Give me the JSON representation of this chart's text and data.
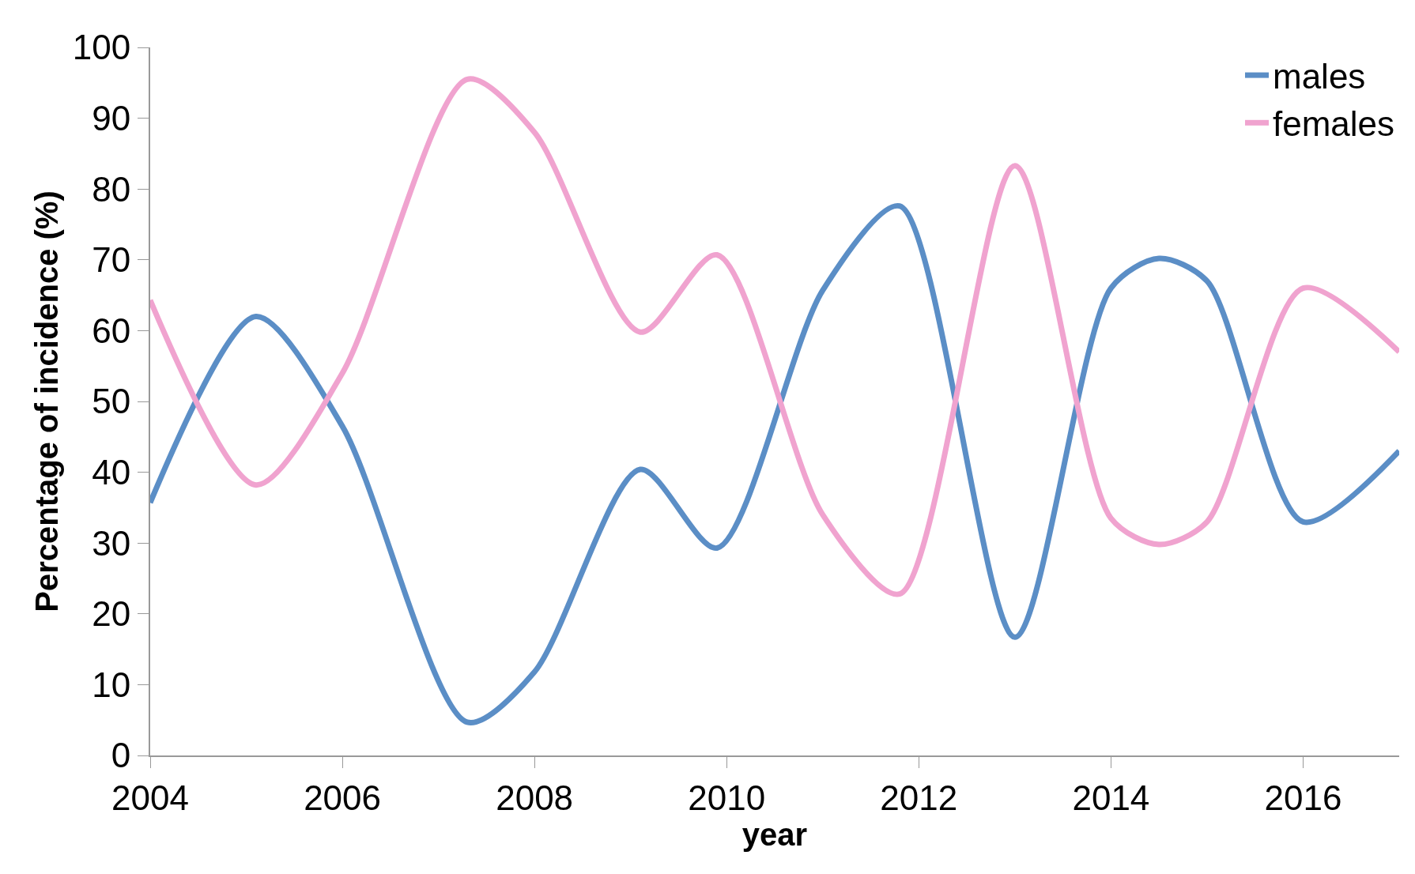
{
  "chart_data": {
    "type": "line",
    "xlabel": "year",
    "ylabel": "Percentage of incidence (%)",
    "x": [
      2004,
      2005.1,
      2006,
      2007.3,
      2008,
      2009.1,
      2009.9,
      2011,
      2011.8,
      2013,
      2014,
      2014.5,
      2015,
      2016,
      2017
    ],
    "series": [
      {
        "name": "males",
        "color": "#5b8ec6",
        "values": [
          35.7,
          62,
          46.5,
          4.7,
          11.8,
          40.4,
          29.3,
          65.7,
          77.6,
          16.7,
          66,
          70.2,
          67,
          33,
          43
        ]
      },
      {
        "name": "females",
        "color": "#f0a3cf",
        "values": [
          64.3,
          38.2,
          54,
          95.5,
          88,
          59.8,
          70.7,
          34,
          22.8,
          83.3,
          33.5,
          29.8,
          33,
          66,
          57
        ]
      }
    ],
    "xlim": [
      2004,
      2017
    ],
    "xticks": [
      2004,
      2006,
      2008,
      2010,
      2012,
      2014,
      2016
    ],
    "ylim": [
      0,
      100
    ],
    "yticks": [
      0,
      10,
      20,
      30,
      40,
      50,
      60,
      70,
      80,
      90,
      100
    ],
    "legend": "top right",
    "marker": "none",
    "line_style": "solid"
  }
}
